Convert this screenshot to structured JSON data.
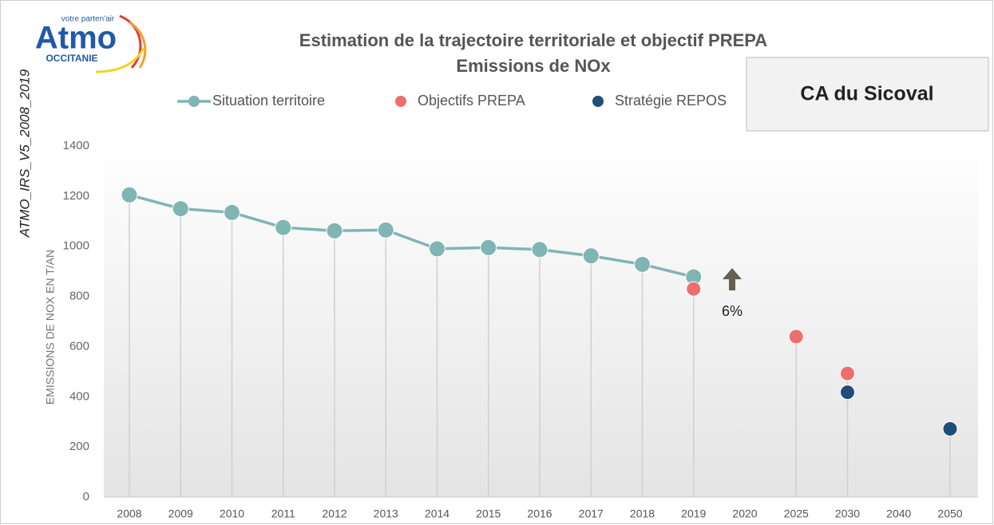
{
  "chart_data": {
    "type": "line",
    "title": "Estimation de la trajectoire territoriale et objectif PREPA",
    "subtitle": "Emissions de NOx",
    "y_label": "EMISSIONS  DE NOX EN T/AN",
    "side_label": "ATMO_IRS_V5_2008_2019",
    "territory": "CA du Sicoval",
    "annotation": "6%",
    "logo": {
      "name": "Atmo",
      "tagline": "votre parten'air",
      "region": "OCCITANIE"
    },
    "categories": [
      "2008",
      "2009",
      "2010",
      "2011",
      "2012",
      "2013",
      "2014",
      "2015",
      "2016",
      "2017",
      "2018",
      "2019",
      "2020",
      "2025",
      "2030",
      "2040",
      "2050"
    ],
    "series": [
      {
        "name": "Situation territoire",
        "color": "#7fb5b3",
        "line": true,
        "values": [
          1205,
          1150,
          1135,
          1075,
          1062,
          1065,
          990,
          995,
          987,
          962,
          928,
          878,
          null,
          null,
          null,
          null,
          null
        ]
      },
      {
        "name": "Objectifs PREPA",
        "color": "#ee6e6e",
        "line": false,
        "values": [
          null,
          null,
          null,
          null,
          null,
          null,
          null,
          null,
          null,
          null,
          null,
          830,
          null,
          640,
          493,
          null,
          null
        ]
      },
      {
        "name": "Stratégie REPOS",
        "color": "#1f4e79",
        "line": false,
        "values": [
          null,
          null,
          null,
          null,
          null,
          null,
          null,
          null,
          null,
          null,
          null,
          null,
          null,
          null,
          418,
          null,
          272
        ]
      }
    ],
    "ylim": [
      0,
      1400
    ],
    "yticks": [
      0,
      200,
      400,
      600,
      800,
      1000,
      1200,
      1400
    ],
    "grid": false
  }
}
